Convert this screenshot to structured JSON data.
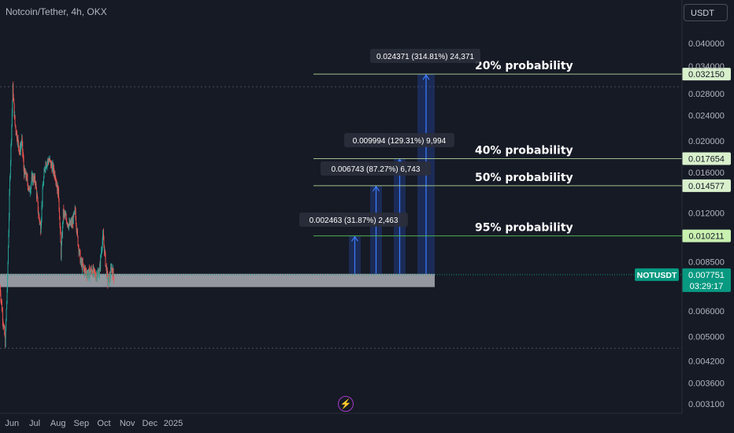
{
  "header": {
    "title": "Notcoin/Tether, 4h, OKX",
    "currency_button": "USDT"
  },
  "colors": {
    "background": "#161a25",
    "up": "#26a69a",
    "down": "#ef5350",
    "zone": "#b8bbc2",
    "projection": "#2a5bd7",
    "line": "#9fbf8e",
    "green_line": "#4caf50",
    "label_bg": "#2a2e39",
    "ticker_bg": "#089981"
  },
  "chart_data": {
    "type": "candlestick",
    "symbol": "NOTUSDT",
    "interval": "4h",
    "exchange": "OKX",
    "y_scale": "log",
    "ylim": [
      0.0029,
      0.046
    ],
    "y_ticks": [
      "0.040000",
      "0.034000",
      "0.028000",
      "0.024000",
      "0.020000",
      "0.016000",
      "0.012000",
      "0.008500",
      "0.006000",
      "0.005000",
      "0.004200",
      "0.003600",
      "0.003100"
    ],
    "x_ticks": [
      "Jun",
      "Jul",
      "Aug",
      "Sep",
      "Oct",
      "Nov",
      "Dec",
      "2025"
    ],
    "price_path": [
      [
        "2024-05-16",
        0.0071
      ],
      [
        "2024-05-20",
        0.0056
      ],
      [
        "2024-05-23",
        0.0048
      ],
      [
        "2024-05-26",
        0.0075
      ],
      [
        "2024-05-29",
        0.015
      ],
      [
        "2024-06-01",
        0.0245
      ],
      [
        "2024-06-02",
        0.029
      ],
      [
        "2024-06-05",
        0.0225
      ],
      [
        "2024-06-08",
        0.0205
      ],
      [
        "2024-06-11",
        0.0185
      ],
      [
        "2024-06-14",
        0.02
      ],
      [
        "2024-06-17",
        0.016
      ],
      [
        "2024-06-20",
        0.0155
      ],
      [
        "2024-06-24",
        0.014
      ],
      [
        "2024-06-28",
        0.0155
      ],
      [
        "2024-07-02",
        0.015
      ],
      [
        "2024-07-06",
        0.012
      ],
      [
        "2024-07-09",
        0.0108
      ],
      [
        "2024-07-12",
        0.0145
      ],
      [
        "2024-07-15",
        0.017
      ],
      [
        "2024-07-20",
        0.0175
      ],
      [
        "2024-07-25",
        0.0165
      ],
      [
        "2024-07-29",
        0.0155
      ],
      [
        "2024-08-02",
        0.0135
      ],
      [
        "2024-08-05",
        0.009
      ],
      [
        "2024-08-08",
        0.012
      ],
      [
        "2024-08-12",
        0.0115
      ],
      [
        "2024-08-16",
        0.011
      ],
      [
        "2024-08-20",
        0.0112
      ],
      [
        "2024-08-24",
        0.0122
      ],
      [
        "2024-08-27",
        0.01
      ],
      [
        "2024-08-31",
        0.0085
      ],
      [
        "2024-09-05",
        0.008
      ],
      [
        "2024-09-10",
        0.0078
      ],
      [
        "2024-09-15",
        0.008
      ],
      [
        "2024-09-20",
        0.0077
      ],
      [
        "2024-09-25",
        0.0079
      ],
      [
        "2024-09-28",
        0.0095
      ],
      [
        "2024-09-30",
        0.0102
      ],
      [
        "2024-10-03",
        0.0085
      ],
      [
        "2024-10-06",
        0.0074
      ],
      [
        "2024-10-09",
        0.0076
      ],
      [
        "2024-10-11",
        0.0082
      ],
      [
        "2024-10-14",
        0.0077
      ]
    ],
    "support_zone": {
      "from": 0.0071,
      "to": 0.0078
    },
    "levels": [
      {
        "price": 0.03215,
        "label": "0.032150",
        "text": "20% probability",
        "measure": "0.024371 (314.81%) 24,371"
      },
      {
        "price": 0.017654,
        "label": "0.017654",
        "text": "40% probability",
        "measure": "0.009994 (129.31%) 9,994"
      },
      {
        "price": 0.014577,
        "label": "0.014577",
        "text": "50% probability",
        "measure": "0.006743 (87.27%) 6,743"
      },
      {
        "price": 0.010211,
        "label": "0.010211",
        "text": "95% probability",
        "measure": "0.002463 (31.87%) 2,463"
      }
    ],
    "current": {
      "ticker": "NOTUSDT",
      "price": "0.007751",
      "countdown": "03:29:17"
    },
    "dotted_high": 0.0294,
    "dotted_low": 0.0046
  }
}
